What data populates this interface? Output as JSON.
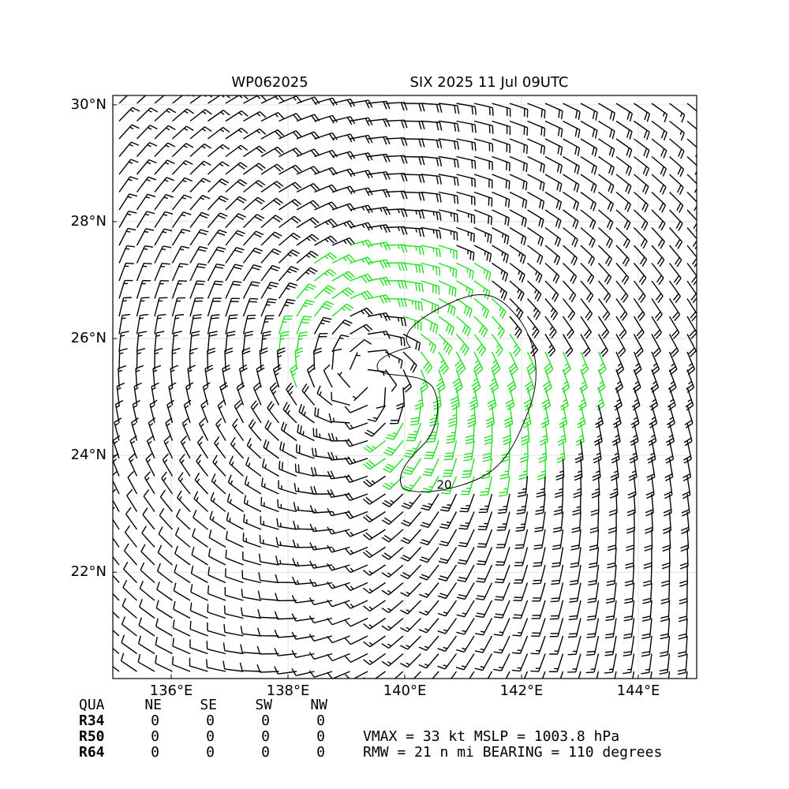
{
  "chart_data": {
    "type": "barbs",
    "title_left": "WP062025",
    "title_right": "SIX 2025 11 Jul 09UTC",
    "xlim": [
      135.0,
      145.0
    ],
    "ylim": [
      20.18,
      30.16
    ],
    "xticks": [
      {
        "value": 136,
        "label": "136°E"
      },
      {
        "value": 138,
        "label": "138°E"
      },
      {
        "value": 140,
        "label": "140°E"
      },
      {
        "value": 142,
        "label": "142°E"
      },
      {
        "value": 144,
        "label": "144°E"
      }
    ],
    "yticks": [
      {
        "value": 22,
        "label": "22°N"
      },
      {
        "value": 24,
        "label": "24°N"
      },
      {
        "value": 26,
        "label": "26°N"
      },
      {
        "value": 28,
        "label": "28°N"
      },
      {
        "value": 30,
        "label": "30°N"
      }
    ],
    "grid": true,
    "contour_label": "20"
  },
  "table": {
    "header": [
      "QUA",
      "NE",
      "SE",
      "SW",
      "NW"
    ],
    "rows": [
      [
        "R34",
        0,
        0,
        0,
        0
      ],
      [
        "R50",
        0,
        0,
        0,
        0
      ],
      [
        "R64",
        0,
        0,
        0,
        0
      ]
    ]
  },
  "info": [
    "VMAX =  33 kt MSLP = 1003.8 hPa",
    "RMW =  21 n mi BEARING = 110 degrees"
  ]
}
